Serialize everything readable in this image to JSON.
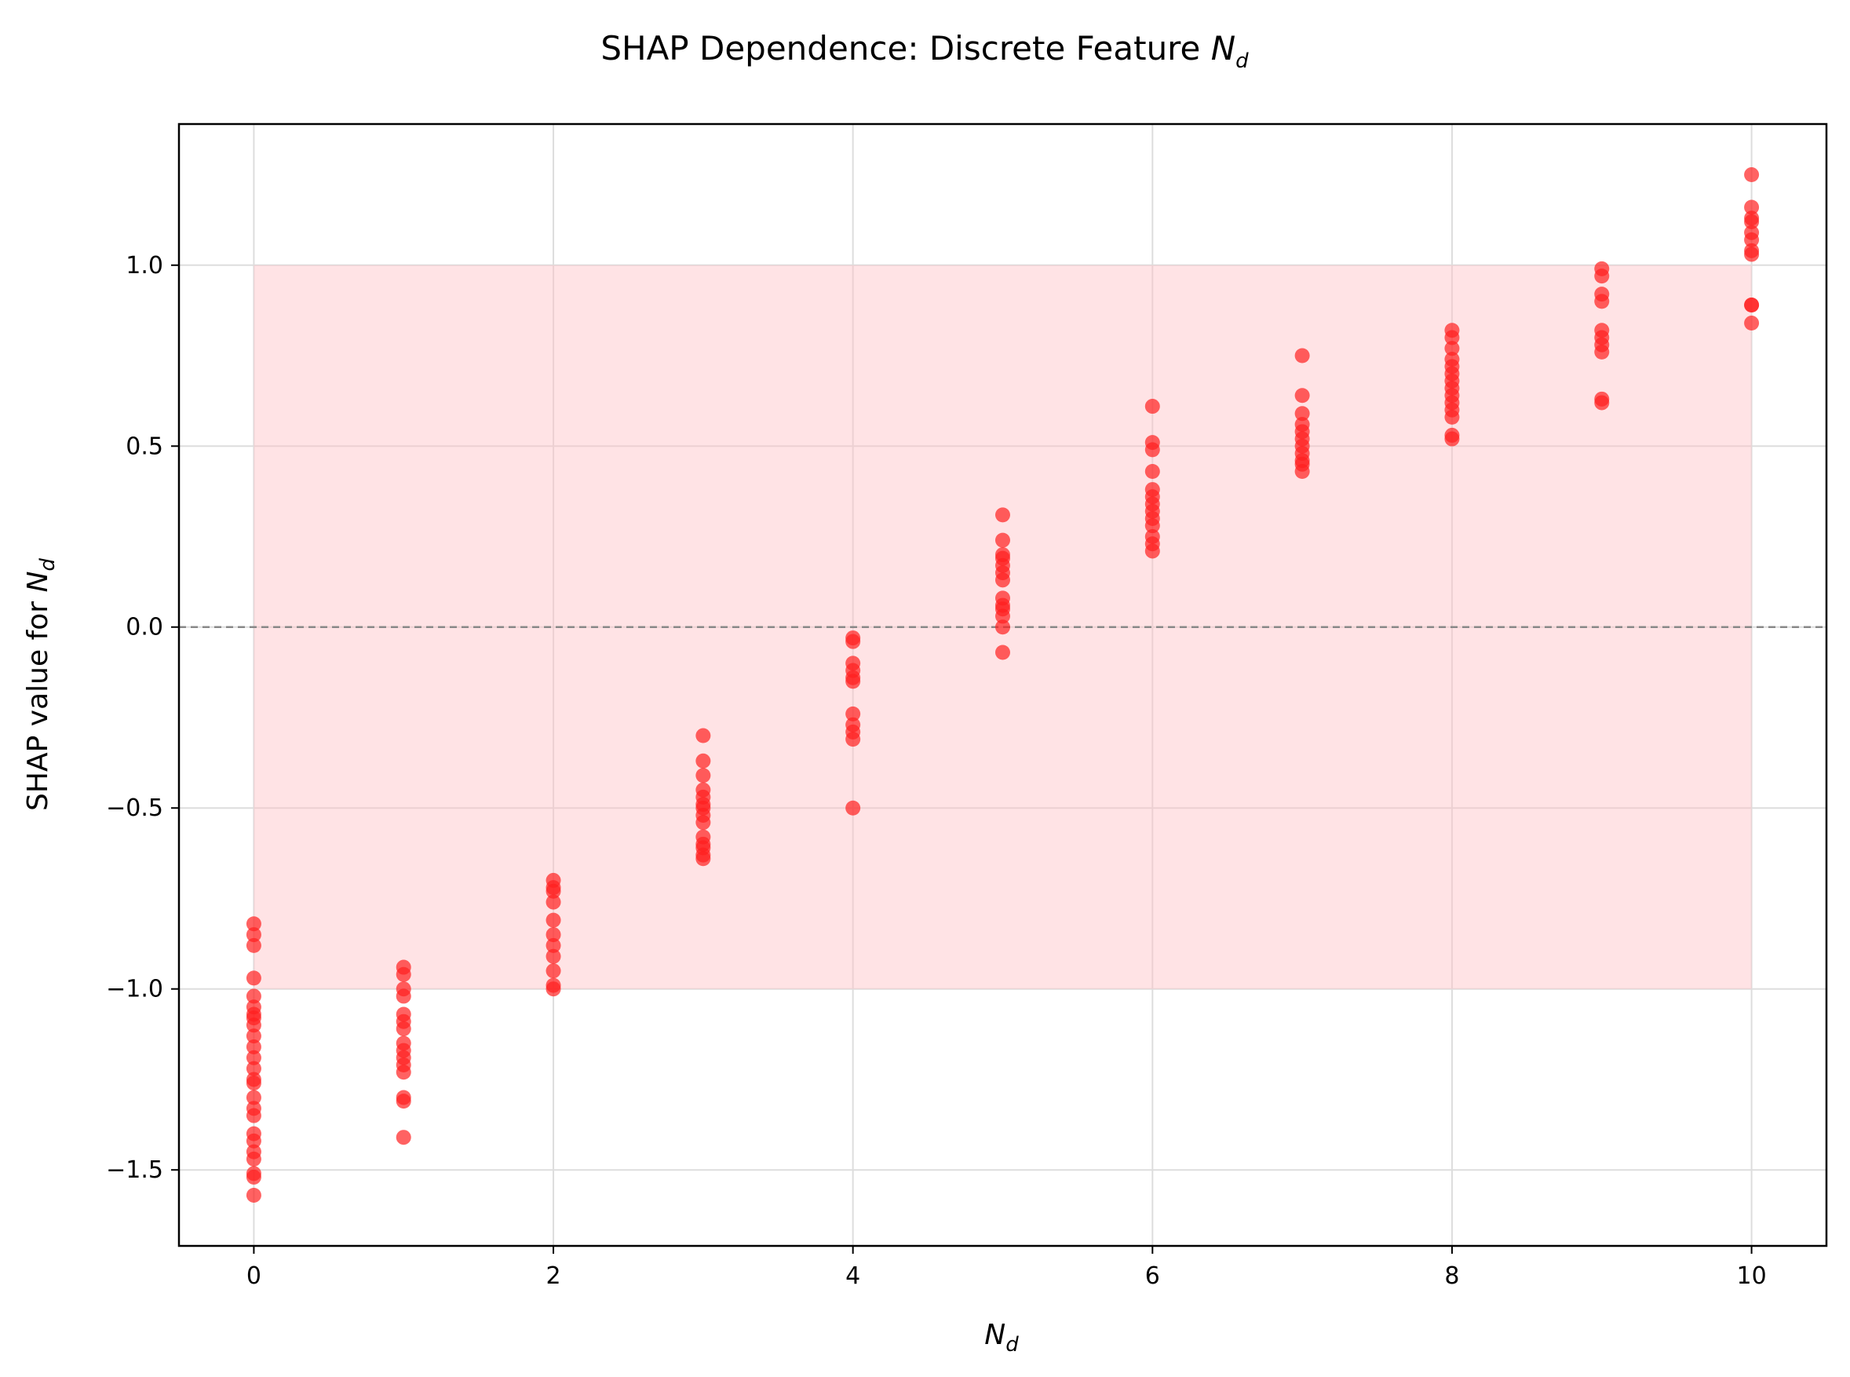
{
  "chart_data": {
    "type": "scatter",
    "title": "SHAP Dependence: Discrete Feature",
    "title_symbol": "N",
    "title_symbol_sub": "d",
    "xlabel": "",
    "xlabel_symbol": "N",
    "xlabel_symbol_sub": "d",
    "ylabel": "SHAP value for",
    "ylabel_symbol": "N",
    "ylabel_symbol_sub": "d",
    "xlim": [
      -0.5,
      10.5
    ],
    "ylim": [
      -1.71,
      1.39
    ],
    "xticks": [
      0,
      2,
      4,
      6,
      8,
      10
    ],
    "xtick_labels": [
      "0",
      "2",
      "4",
      "6",
      "8",
      "10"
    ],
    "yticks": [
      1.0,
      0.5,
      0.0,
      -0.5,
      -1.0,
      -1.5
    ],
    "ytick_labels": [
      "1.0",
      "0.5",
      "0.0",
      "−0.5",
      "−1.0",
      "−1.5"
    ],
    "grid": true,
    "reference_line": {
      "y": 0.0,
      "style": "dashed",
      "color": "#888888"
    },
    "band": {
      "x": [
        0,
        10
      ],
      "y": [
        -1.0,
        1.0
      ],
      "color": "#ffc0c6"
    },
    "marker_color": "#ff2020",
    "series": [
      {
        "name": "N_d",
        "points": [
          [
            0,
            -0.82
          ],
          [
            0,
            -0.85
          ],
          [
            0,
            -0.88
          ],
          [
            0,
            -0.97
          ],
          [
            0,
            -1.02
          ],
          [
            0,
            -1.05
          ],
          [
            0,
            -1.07
          ],
          [
            0,
            -1.08
          ],
          [
            0,
            -1.1
          ],
          [
            0,
            -1.13
          ],
          [
            0,
            -1.16
          ],
          [
            0,
            -1.19
          ],
          [
            0,
            -1.22
          ],
          [
            0,
            -1.25
          ],
          [
            0,
            -1.26
          ],
          [
            0,
            -1.3
          ],
          [
            0,
            -1.33
          ],
          [
            0,
            -1.35
          ],
          [
            0,
            -1.4
          ],
          [
            0,
            -1.42
          ],
          [
            0,
            -1.45
          ],
          [
            0,
            -1.47
          ],
          [
            0,
            -1.51
          ],
          [
            0,
            -1.52
          ],
          [
            0,
            -1.57
          ],
          [
            1,
            -0.94
          ],
          [
            1,
            -0.96
          ],
          [
            1,
            -1.0
          ],
          [
            1,
            -1.02
          ],
          [
            1,
            -1.07
          ],
          [
            1,
            -1.09
          ],
          [
            1,
            -1.11
          ],
          [
            1,
            -1.15
          ],
          [
            1,
            -1.17
          ],
          [
            1,
            -1.19
          ],
          [
            1,
            -1.21
          ],
          [
            1,
            -1.23
          ],
          [
            1,
            -1.3
          ],
          [
            1,
            -1.31
          ],
          [
            1,
            -1.41
          ],
          [
            2,
            -0.7
          ],
          [
            2,
            -0.72
          ],
          [
            2,
            -0.73
          ],
          [
            2,
            -0.76
          ],
          [
            2,
            -0.81
          ],
          [
            2,
            -0.85
          ],
          [
            2,
            -0.88
          ],
          [
            2,
            -0.91
          ],
          [
            2,
            -0.95
          ],
          [
            2,
            -0.99
          ],
          [
            2,
            -1.0
          ],
          [
            3,
            -0.3
          ],
          [
            3,
            -0.37
          ],
          [
            3,
            -0.41
          ],
          [
            3,
            -0.45
          ],
          [
            3,
            -0.47
          ],
          [
            3,
            -0.49
          ],
          [
            3,
            -0.5
          ],
          [
            3,
            -0.52
          ],
          [
            3,
            -0.54
          ],
          [
            3,
            -0.58
          ],
          [
            3,
            -0.6
          ],
          [
            3,
            -0.61
          ],
          [
            3,
            -0.63
          ],
          [
            3,
            -0.64
          ],
          [
            4,
            -0.03
          ],
          [
            4,
            -0.04
          ],
          [
            4,
            -0.1
          ],
          [
            4,
            -0.12
          ],
          [
            4,
            -0.14
          ],
          [
            4,
            -0.15
          ],
          [
            4,
            -0.24
          ],
          [
            4,
            -0.27
          ],
          [
            4,
            -0.29
          ],
          [
            4,
            -0.31
          ],
          [
            4,
            -0.5
          ],
          [
            5,
            0.31
          ],
          [
            5,
            0.24
          ],
          [
            5,
            0.2
          ],
          [
            5,
            0.19
          ],
          [
            5,
            0.17
          ],
          [
            5,
            0.15
          ],
          [
            5,
            0.13
          ],
          [
            5,
            0.08
          ],
          [
            5,
            0.06
          ],
          [
            5,
            0.05
          ],
          [
            5,
            0.03
          ],
          [
            5,
            0.0
          ],
          [
            5,
            -0.07
          ],
          [
            6,
            0.61
          ],
          [
            6,
            0.51
          ],
          [
            6,
            0.49
          ],
          [
            6,
            0.43
          ],
          [
            6,
            0.38
          ],
          [
            6,
            0.36
          ],
          [
            6,
            0.34
          ],
          [
            6,
            0.32
          ],
          [
            6,
            0.3
          ],
          [
            6,
            0.28
          ],
          [
            6,
            0.25
          ],
          [
            6,
            0.23
          ],
          [
            6,
            0.21
          ],
          [
            7,
            0.75
          ],
          [
            7,
            0.64
          ],
          [
            7,
            0.59
          ],
          [
            7,
            0.56
          ],
          [
            7,
            0.54
          ],
          [
            7,
            0.52
          ],
          [
            7,
            0.5
          ],
          [
            7,
            0.48
          ],
          [
            7,
            0.46
          ],
          [
            7,
            0.45
          ],
          [
            7,
            0.43
          ],
          [
            8,
            0.82
          ],
          [
            8,
            0.8
          ],
          [
            8,
            0.77
          ],
          [
            8,
            0.74
          ],
          [
            8,
            0.72
          ],
          [
            8,
            0.7
          ],
          [
            8,
            0.68
          ],
          [
            8,
            0.66
          ],
          [
            8,
            0.64
          ],
          [
            8,
            0.62
          ],
          [
            8,
            0.6
          ],
          [
            8,
            0.58
          ],
          [
            8,
            0.53
          ],
          [
            8,
            0.52
          ],
          [
            9,
            0.99
          ],
          [
            9,
            0.97
          ],
          [
            9,
            0.92
          ],
          [
            9,
            0.9
          ],
          [
            9,
            0.82
          ],
          [
            9,
            0.8
          ],
          [
            9,
            0.78
          ],
          [
            9,
            0.76
          ],
          [
            9,
            0.63
          ],
          [
            9,
            0.62
          ],
          [
            10,
            1.25
          ],
          [
            10,
            1.16
          ],
          [
            10,
            1.13
          ],
          [
            10,
            1.12
          ],
          [
            10,
            1.09
          ],
          [
            10,
            1.07
          ],
          [
            10,
            1.04
          ],
          [
            10,
            1.03
          ],
          [
            10,
            0.89
          ],
          [
            10,
            0.89
          ],
          [
            10,
            0.84
          ]
        ]
      }
    ]
  }
}
